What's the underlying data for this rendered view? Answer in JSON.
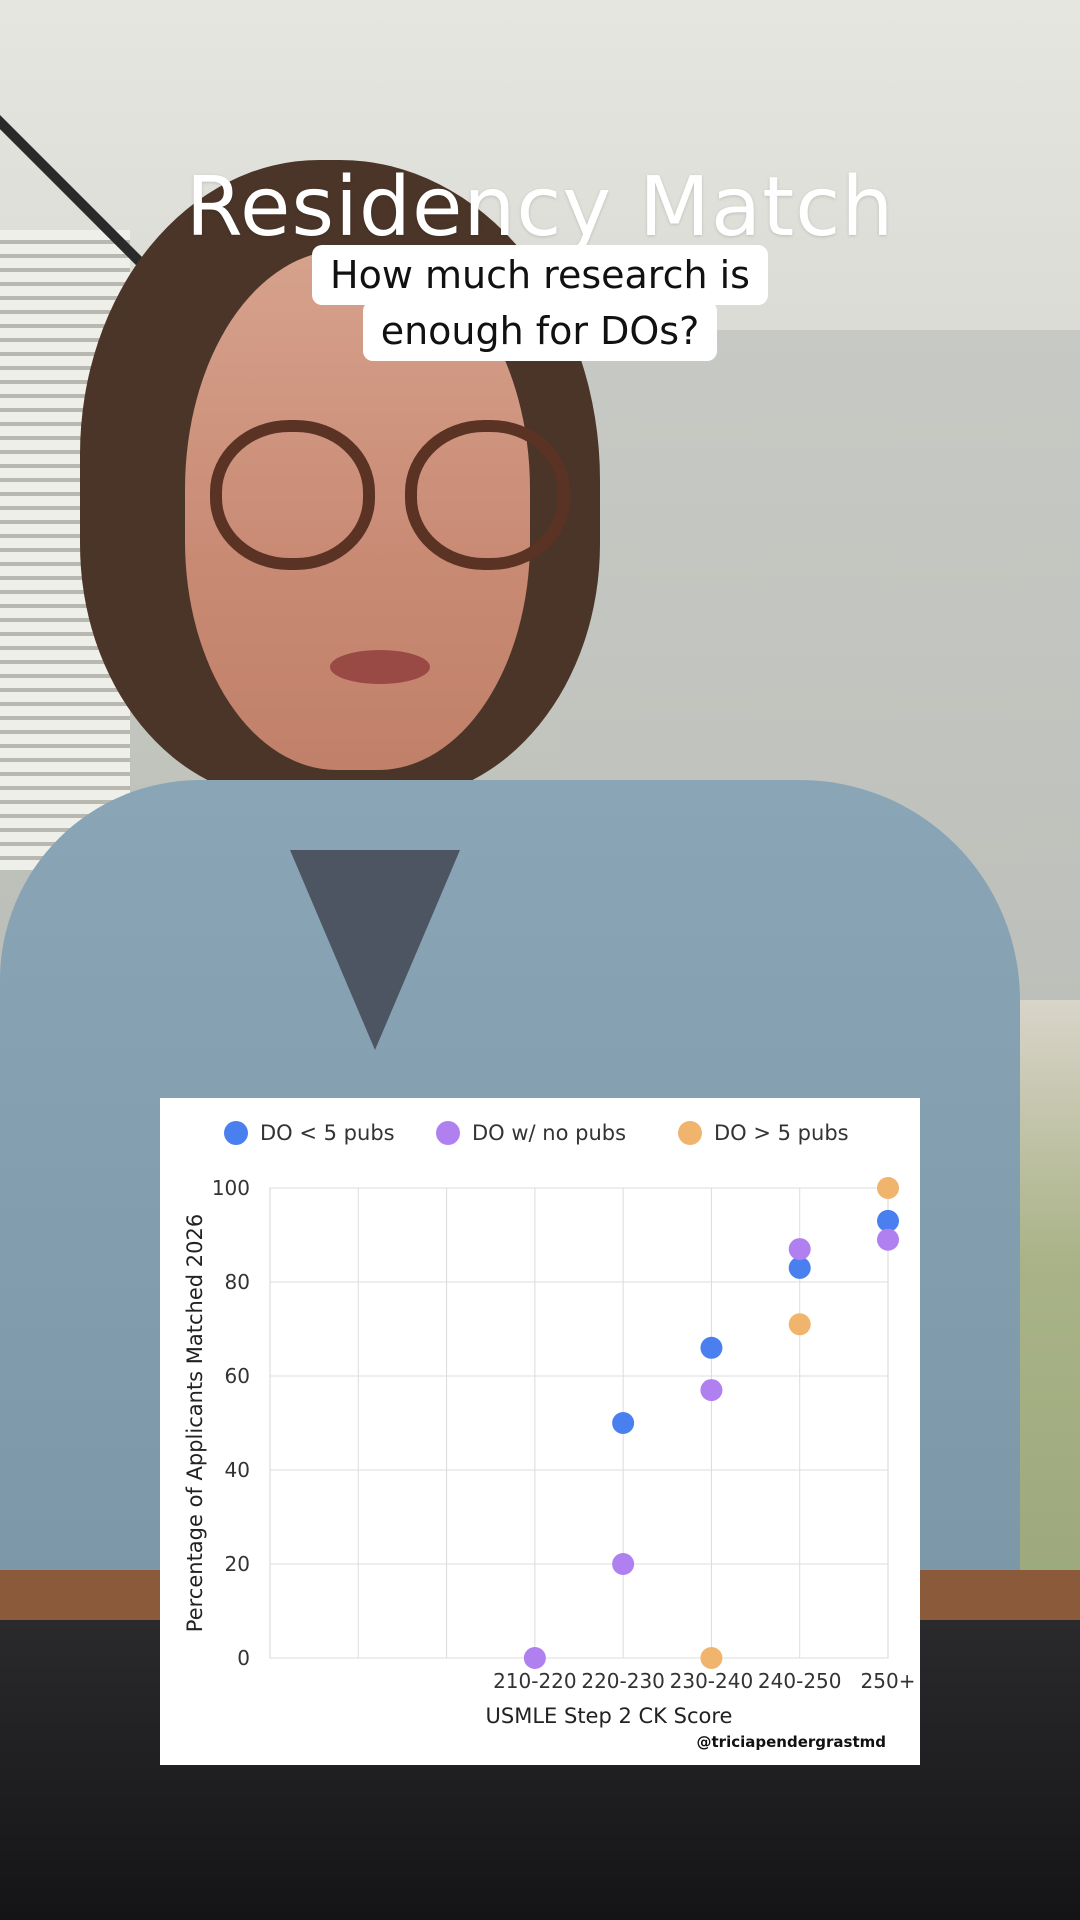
{
  "caption": {
    "title": "Residency Match",
    "subtitle_line1": "How much research is",
    "subtitle_line2": "enough for DOs?"
  },
  "watermark": "@triciapendergrastmd",
  "chart_data": {
    "type": "scatter",
    "categories": [
      "210-220",
      "220-230",
      "230-240",
      "240-250",
      "250+"
    ],
    "xlabel": "USMLE Step 2 CK Score",
    "ylabel": "Percentage of Applicants Matched 2026",
    "ylim": [
      0,
      100
    ],
    "yticks": [
      0,
      20,
      40,
      60,
      80,
      100
    ],
    "grid": true,
    "legend_position": "top",
    "series": [
      {
        "name": "DO < 5 pubs",
        "color": "#4a7ff0",
        "values": [
          null,
          50,
          66,
          83,
          93
        ]
      },
      {
        "name": "DO w/ no pubs",
        "color": "#b07ff0",
        "values": [
          0,
          20,
          57,
          87,
          89
        ]
      },
      {
        "name": "DO > 5 pubs",
        "color": "#f0b46c",
        "values": [
          null,
          null,
          0,
          71,
          100
        ]
      }
    ]
  }
}
